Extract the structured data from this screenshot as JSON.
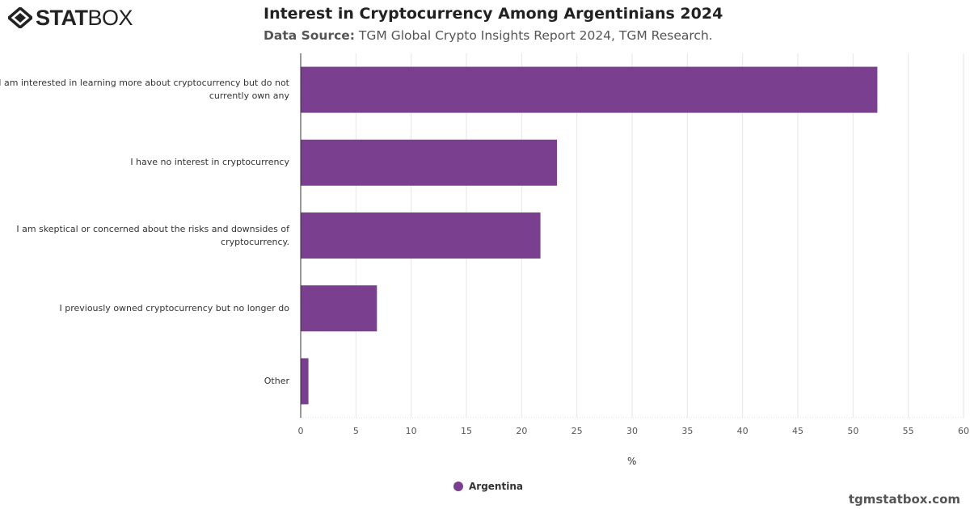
{
  "logo": {
    "bold": "STAT",
    "light": "BOX"
  },
  "header": {
    "title": "Interest in Cryptocurrency Among Argentinians 2024",
    "source_label": "Data Source:",
    "source_text": "TGM Global Crypto Insights Report 2024, TGM Research."
  },
  "footer": "tgmstatbox.com",
  "chart_data": {
    "type": "bar",
    "orientation": "horizontal",
    "title": "Interest in Cryptocurrency Among Argentinians 2024",
    "categories": [
      "I am interested in learning more about cryptocurrency but do not currently own any",
      "I have no interest in cryptocurrency",
      "I am skeptical or concerned about the risks and downsides of cryptocurrency.",
      "I previously owned cryptocurrency but no longer do",
      "Other"
    ],
    "series": [
      {
        "name": "Argentina",
        "color": "#7b3f8f",
        "values": [
          52.2,
          23.2,
          21.7,
          6.9,
          0.7
        ]
      }
    ],
    "xlabel": "%",
    "xlim": [
      0,
      60
    ],
    "xticks": [
      "0",
      "5",
      "10",
      "15",
      "20",
      "25",
      "30",
      "35",
      "40",
      "45",
      "50",
      "55",
      "60"
    ],
    "grid": true,
    "legend": "bottom-center"
  }
}
